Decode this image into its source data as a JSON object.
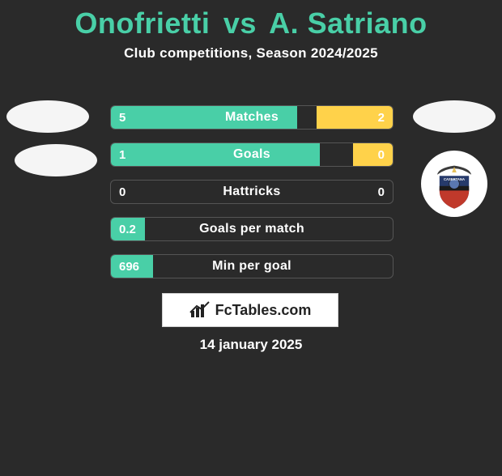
{
  "title": {
    "player1": "Onofrietti",
    "vs": "vs",
    "player2": "A. Satriano",
    "color": "#49cfa7"
  },
  "subtitle": "Club competitions, Season 2024/2025",
  "colors": {
    "left_bar": "#49cfa7",
    "right_bar": "#ffd24a",
    "row_border": "#555555",
    "background": "#2a2a2a",
    "text": "#ffffff"
  },
  "stats": [
    {
      "label": "Matches",
      "left_val": "5",
      "right_val": "2",
      "left_pct": 66,
      "right_pct": 27
    },
    {
      "label": "Goals",
      "left_val": "1",
      "right_val": "0",
      "left_pct": 74,
      "right_pct": 14
    },
    {
      "label": "Hattricks",
      "left_val": "0",
      "right_val": "0",
      "left_pct": 0,
      "right_pct": 0
    },
    {
      "label": "Goals per match",
      "left_val": "0.2",
      "right_val": "",
      "left_pct": 12,
      "right_pct": 0
    },
    {
      "label": "Min per goal",
      "left_val": "696",
      "right_val": "",
      "left_pct": 15,
      "right_pct": 0
    }
  ],
  "brand": "FcTables.com",
  "date": "14 january 2025",
  "club_badge": {
    "name": "casertana-fc",
    "top_text": "CASERTANA FC",
    "colors": {
      "top": "#263a6b",
      "bottom": "#c0392b",
      "eagle": "#3a3a3a",
      "year_band": "#1b1b1b"
    }
  }
}
